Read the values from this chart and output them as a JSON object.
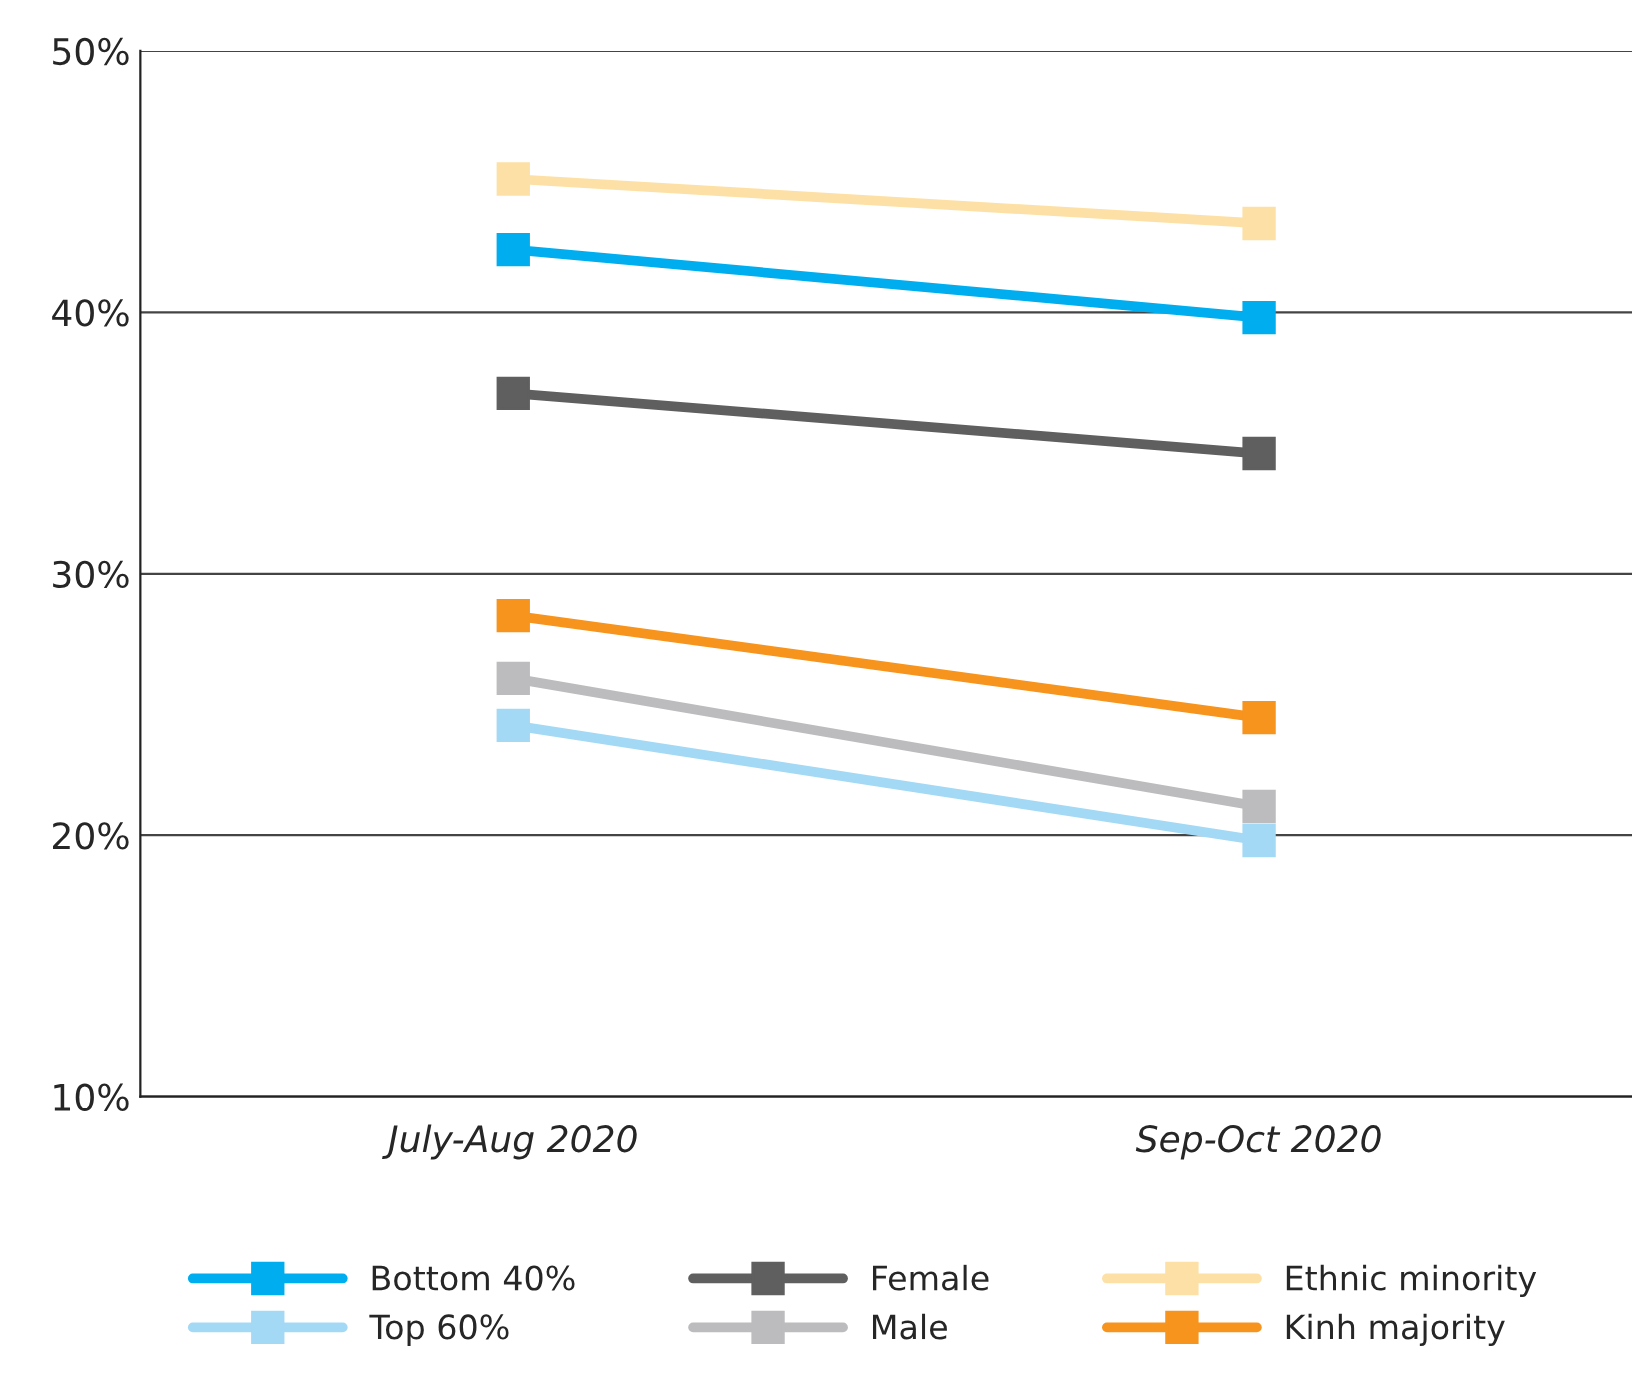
{
  "chart_data": {
    "type": "line",
    "categories": [
      "July-Aug 2020",
      "Sep-Oct 2020"
    ],
    "series": [
      {
        "name": "Bottom 40%",
        "color": "#00aeef",
        "values": [
          42.4,
          39.8
        ]
      },
      {
        "name": "Top 60%",
        "color": "#a3d9f5",
        "values": [
          24.2,
          19.8
        ]
      },
      {
        "name": "Female",
        "color": "#5f5f5f",
        "values": [
          36.9,
          34.6
        ]
      },
      {
        "name": "Male",
        "color": "#bcbcbe",
        "values": [
          26.0,
          21.1
        ]
      },
      {
        "name": "Ethnic minority",
        "color": "#fde0a5",
        "values": [
          45.1,
          43.4
        ]
      },
      {
        "name": "Kinh majority",
        "color": "#f7941d",
        "values": [
          28.4,
          24.5
        ]
      }
    ],
    "ylim": [
      10,
      50
    ],
    "yticks": [
      {
        "value": 10,
        "label": "10%"
      },
      {
        "value": 20,
        "label": "20%"
      },
      {
        "value": 30,
        "label": "30%"
      },
      {
        "value": 40,
        "label": "40%"
      },
      {
        "value": 50,
        "label": "50%"
      }
    ],
    "grid": "y",
    "legend": "bottom",
    "marker": "square",
    "line_style": "solid"
  }
}
